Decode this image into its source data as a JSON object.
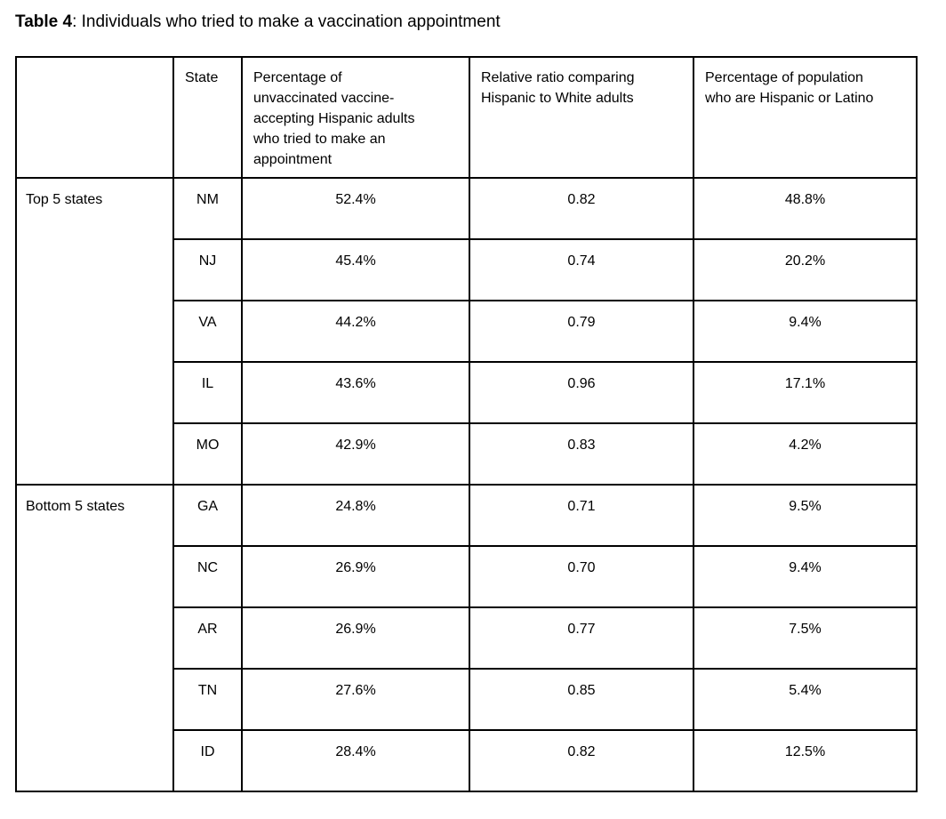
{
  "page": {
    "title_bold": "Table 4",
    "title_rest": ": Individuals who tried to make a vaccination appointment"
  },
  "colors": {
    "background": "#ffffff",
    "border": "#000000",
    "text": "#000000"
  },
  "table": {
    "column_headers": {
      "group": "",
      "state": "State",
      "pct_tried": "Percentage of unvaccinated vaccine-accepting Hispanic adults who tried to make an appointment",
      "ratio": "Relative ratio comparing Hispanic to White adults",
      "pct_population": "Percentage of population who are Hispanic or Latino"
    },
    "groups": [
      {
        "label": "Top 5 states",
        "rows": [
          {
            "state": "NM",
            "pct_tried": "52.4%",
            "ratio": "0.82",
            "pct_population": "48.8%"
          },
          {
            "state": "NJ",
            "pct_tried": "45.4%",
            "ratio": "0.74",
            "pct_population": "20.2%"
          },
          {
            "state": "VA",
            "pct_tried": "44.2%",
            "ratio": "0.79",
            "pct_population": "9.4%"
          },
          {
            "state": "IL",
            "pct_tried": "43.6%",
            "ratio": "0.96",
            "pct_population": "17.1%"
          },
          {
            "state": "MO",
            "pct_tried": "42.9%",
            "ratio": "0.83",
            "pct_population": "4.2%"
          }
        ]
      },
      {
        "label": "Bottom 5 states",
        "rows": [
          {
            "state": "GA",
            "pct_tried": "24.8%",
            "ratio": "0.71",
            "pct_population": "9.5%"
          },
          {
            "state": "NC",
            "pct_tried": "26.9%",
            "ratio": "0.70",
            "pct_population": "9.4%"
          },
          {
            "state": "AR",
            "pct_tried": "26.9%",
            "ratio": "0.77",
            "pct_population": "7.5%"
          },
          {
            "state": "TN",
            "pct_tried": "27.6%",
            "ratio": "0.85",
            "pct_population": "5.4%"
          },
          {
            "state": "ID",
            "pct_tried": "28.4%",
            "ratio": "0.82",
            "pct_population": "12.5%"
          }
        ]
      }
    ]
  }
}
